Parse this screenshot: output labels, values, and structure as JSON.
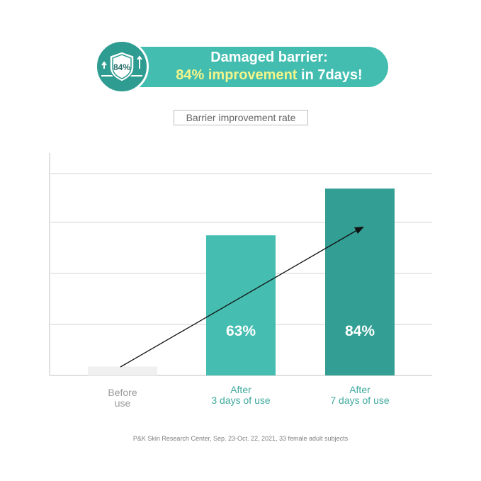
{
  "header": {
    "line1": "Damaged barrier:",
    "line2_highlight": "84% improvement",
    "line2_rest": " in 7days!",
    "badge_text": "84%",
    "badge_icon": "shield-icon"
  },
  "chart_data": {
    "type": "bar",
    "title": "Barrier improvement rate",
    "categories": [
      [
        "Before",
        "use"
      ],
      [
        "After",
        "3 days of use"
      ],
      [
        "After",
        "7 days of use"
      ]
    ],
    "values": [
      4,
      63,
      84
    ],
    "data_labels": [
      "",
      "63%",
      "84%"
    ],
    "ylim": [
      0,
      100
    ],
    "grid": true,
    "trend_arrow": true,
    "colors": [
      "#f0f0f0",
      "#45bdb1",
      "#339e93"
    ],
    "label_colors": [
      "#9a9a9a",
      "#3fa99e",
      "#3fa99e"
    ]
  },
  "footer": {
    "source": "P&K Skin Research Center, Sep. 23-Oct. 22, 2021, 33 female adult subjects"
  }
}
